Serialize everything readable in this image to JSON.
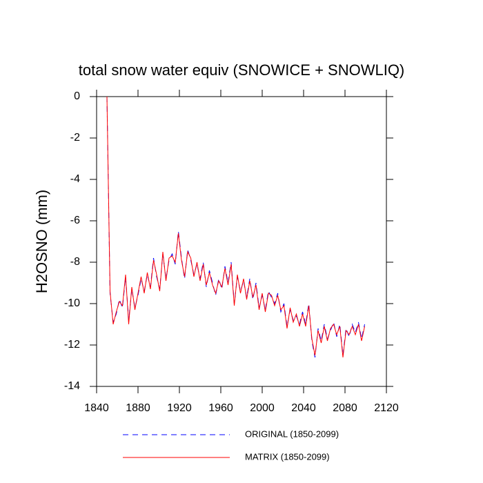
{
  "chart_data": {
    "type": "line",
    "title": "total snow water equiv (SNOWICE + SNOWLIQ)",
    "y_label": "H2OSNO  (mm)",
    "x": [
      1850,
      1853,
      1856,
      1859,
      1862,
      1865,
      1868,
      1871,
      1874,
      1877,
      1880,
      1883,
      1886,
      1889,
      1892,
      1895,
      1898,
      1901,
      1904,
      1907,
      1910,
      1913,
      1916,
      1919,
      1922,
      1925,
      1928,
      1931,
      1934,
      1937,
      1940,
      1943,
      1946,
      1949,
      1952,
      1955,
      1958,
      1961,
      1964,
      1967,
      1970,
      1973,
      1976,
      1979,
      1982,
      1985,
      1988,
      1991,
      1994,
      1997,
      2000,
      2003,
      2006,
      2009,
      2012,
      2015,
      2018,
      2021,
      2024,
      2027,
      2030,
      2033,
      2036,
      2039,
      2042,
      2045,
      2048,
      2051,
      2054,
      2057,
      2060,
      2063,
      2066,
      2069,
      2072,
      2075,
      2078,
      2081,
      2084,
      2087,
      2090,
      2093,
      2096,
      2099
    ],
    "series": [
      {
        "name": "ORIGINAL (1850-2099)",
        "color": "#0000ff",
        "dashed": true,
        "values": [
          0,
          -9.5,
          -10.9,
          -10.5,
          -9.8,
          -10.2,
          -8.7,
          -10.8,
          -9.3,
          -10.2,
          -9.6,
          -8.8,
          -9.4,
          -8.6,
          -9.2,
          -7.8,
          -8.7,
          -9.3,
          -7.6,
          -8.8,
          -7.9,
          -7.6,
          -8.1,
          -6.5,
          -7.8,
          -8.8,
          -7.4,
          -7.9,
          -8.6,
          -8.1,
          -8.8,
          -8.0,
          -9.2,
          -8.4,
          -9.0,
          -9.6,
          -8.8,
          -9.3,
          -8.2,
          -9.0,
          -8.0,
          -10.0,
          -8.7,
          -9.4,
          -8.9,
          -9.7,
          -8.8,
          -9.8,
          -9.0,
          -10.2,
          -9.6,
          -10.3,
          -9.4,
          -9.7,
          -10.0,
          -9.5,
          -10.4,
          -10.0,
          -11.1,
          -10.3,
          -10.8,
          -10.6,
          -11.0,
          -10.4,
          -11.0,
          -10.0,
          -11.8,
          -12.6,
          -11.2,
          -11.8,
          -11.0,
          -11.7,
          -11.3,
          -10.9,
          -11.6,
          -11.0,
          -12.5,
          -11.2,
          -11.6,
          -11.0,
          -11.4,
          -10.9,
          -11.7,
          -11.0
        ]
      },
      {
        "name": "MATRIX (1850-2099)",
        "color": "#ff0000",
        "dashed": false,
        "values": [
          0,
          -9.4,
          -11.0,
          -10.4,
          -9.9,
          -10.1,
          -8.6,
          -11.0,
          -9.2,
          -10.3,
          -9.5,
          -8.7,
          -9.5,
          -8.5,
          -9.3,
          -7.9,
          -8.6,
          -9.4,
          -7.5,
          -8.9,
          -7.8,
          -7.7,
          -8.0,
          -6.6,
          -7.9,
          -8.7,
          -7.5,
          -7.8,
          -8.7,
          -8.0,
          -8.9,
          -8.1,
          -9.1,
          -8.5,
          -9.1,
          -9.5,
          -8.9,
          -9.2,
          -8.3,
          -9.1,
          -8.1,
          -10.1,
          -8.6,
          -9.5,
          -8.8,
          -9.8,
          -8.9,
          -9.7,
          -9.1,
          -10.3,
          -9.5,
          -10.4,
          -9.5,
          -9.6,
          -10.1,
          -9.6,
          -10.3,
          -10.1,
          -11.2,
          -10.2,
          -10.9,
          -10.5,
          -11.1,
          -10.5,
          -11.1,
          -10.1,
          -11.7,
          -12.5,
          -11.3,
          -11.9,
          -11.1,
          -11.8,
          -11.2,
          -11.0,
          -11.5,
          -11.1,
          -12.6,
          -11.3,
          -11.5,
          -11.1,
          -11.5,
          -11.0,
          -11.8,
          -11.1
        ]
      }
    ],
    "xlim": [
      1840,
      2120
    ],
    "xticks": [
      1840,
      1880,
      1920,
      1960,
      2000,
      2040,
      2080,
      2120
    ],
    "ylim": [
      -14,
      0
    ],
    "yticks": [
      0,
      -2,
      -4,
      -6,
      -8,
      -10,
      -12,
      -14
    ]
  }
}
